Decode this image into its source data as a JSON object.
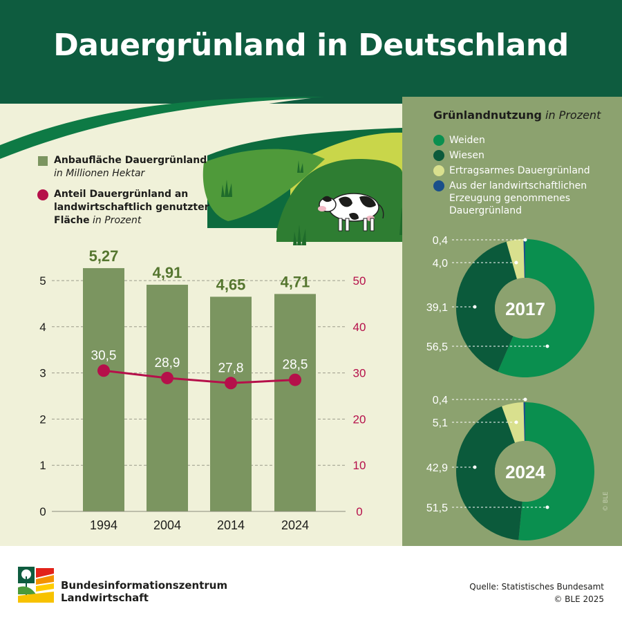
{
  "title": "Dauergrünland in Deutschland",
  "colors": {
    "header": "#0e5c3f",
    "bar": "#7b9560",
    "bar_label": "#55762f",
    "line": "#b5104a",
    "weiden": "#0a8f4f",
    "wiesen": "#0b5a3b",
    "ertragsarm": "#d9e08e",
    "genommen": "#1a4f8a",
    "right_panel": "#8ca26f"
  },
  "legend_left": {
    "bar_title": "Anbaufläche Dauergrünland",
    "bar_unit": "in Millionen Hektar",
    "line_title_1": "Anteil Dauergrünland an",
    "line_title_2": "landwirtschaftlich genutzter",
    "line_title_3": "Fläche",
    "line_unit": "in Prozent"
  },
  "chart_data": [
    {
      "type": "bar",
      "title": "Anbaufläche Dauergrünland",
      "ylabel": "in Millionen Hektar",
      "categories": [
        "1994",
        "2004",
        "2014",
        "2024"
      ],
      "values": [
        5.27,
        4.91,
        4.65,
        4.71
      ],
      "value_labels": [
        "5,27",
        "4,91",
        "4,65",
        "4,71"
      ],
      "ylim": [
        0,
        5
      ],
      "yticks": [
        "0",
        "1",
        "2",
        "3",
        "4",
        "5"
      ],
      "grid": true
    },
    {
      "type": "line",
      "title": "Anteil Dauergrünland an landwirtschaftlich genutzter Fläche",
      "ylabel": "in Prozent",
      "categories": [
        "1994",
        "2004",
        "2014",
        "2024"
      ],
      "values": [
        30.5,
        28.9,
        27.8,
        28.5
      ],
      "value_labels": [
        "30,5",
        "28,9",
        "27,8",
        "28,5"
      ],
      "ylim": [
        0,
        50
      ],
      "yticks": [
        "0",
        "10",
        "20",
        "30",
        "40",
        "50"
      ],
      "axis": "right"
    },
    {
      "type": "pie",
      "title": "Grünlandnutzung in Prozent",
      "year": "2017",
      "labels": [
        "Weiden",
        "Wiesen",
        "Ertragsarmes Dauergrünland",
        "Aus der landwirtschaftlichen Erzeugung genommenes Dauergrünland"
      ],
      "values": [
        56.5,
        39.1,
        4.0,
        0.4
      ],
      "value_labels": [
        "56,5",
        "39,1",
        "4,0",
        "0,4"
      ]
    },
    {
      "type": "pie",
      "title": "Grünlandnutzung in Prozent",
      "year": "2024",
      "labels": [
        "Weiden",
        "Wiesen",
        "Ertragsarmes Dauergrünland",
        "Aus der landwirtschaftlichen Erzeugung genommenes Dauergrünland"
      ],
      "values": [
        51.5,
        42.9,
        5.1,
        0.4
      ],
      "value_labels": [
        "51,5",
        "42,9",
        "5,1",
        "0,4"
      ]
    }
  ],
  "right_legend": {
    "title": "Grünlandnutzung",
    "title_unit": "in Prozent",
    "items": [
      {
        "label": "Weiden",
        "color": "#0a8f4f"
      },
      {
        "label": "Wiesen",
        "color": "#0b5a3b"
      },
      {
        "label": "Ertragsarmes Dauergrünland",
        "color": "#d9e08e"
      },
      {
        "label": "Aus der landwirtschaftlichen Erzeugung genommenes Dauergrünland",
        "color": "#1a4f8a"
      }
    ]
  },
  "footer": {
    "org_line1": "Bundesinformationszentrum",
    "org_line2": "Landwirtschaft",
    "source": "Quelle: Statistisches Bundesamt",
    "copyright": "© BLE 2025",
    "copyright_vertical": "© BLE"
  }
}
